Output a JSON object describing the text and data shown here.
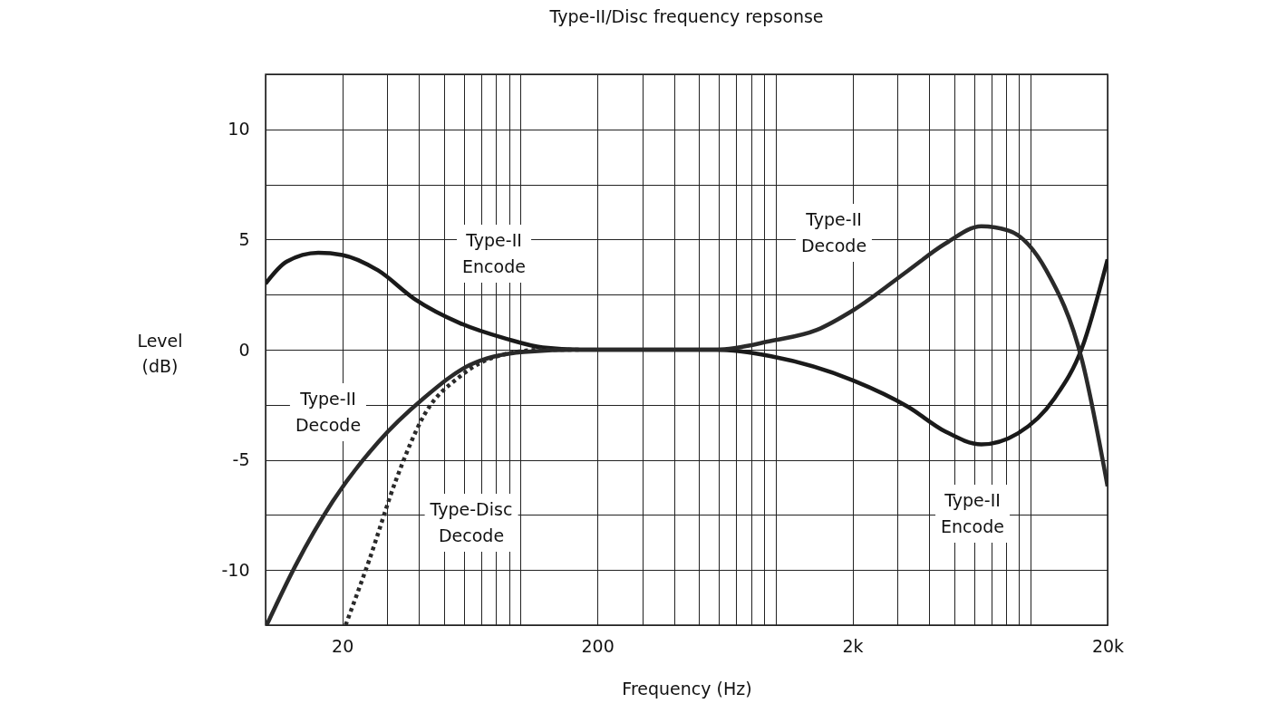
{
  "chart_data": {
    "type": "line",
    "title": "Type-II/Disc frequency repsonse",
    "xlabel": "Frequency (Hz)",
    "ylabel": "Level (dB)",
    "log": "x",
    "grid": true,
    "marker": "none",
    "xlim": [
      10,
      20000
    ],
    "ylim": [
      -12.5,
      12.5
    ],
    "xticks": [
      {
        "value": 10,
        "label": null
      },
      20,
      {
        "value": 30,
        "label": null
      },
      {
        "value": 40,
        "label": null
      },
      {
        "value": 50,
        "label": null
      },
      {
        "value": 60,
        "label": null
      },
      {
        "value": 70,
        "label": null
      },
      {
        "value": 80,
        "label": null
      },
      {
        "value": 90,
        "label": null
      },
      {
        "value": 100,
        "label": null
      },
      200,
      {
        "value": 300,
        "label": null
      },
      {
        "value": 400,
        "label": null
      },
      {
        "value": 500,
        "label": null
      },
      {
        "value": 600,
        "label": null
      },
      {
        "value": 700,
        "label": null
      },
      {
        "value": 800,
        "label": null
      },
      {
        "value": 900,
        "label": null
      },
      {
        "value": 1000,
        "label": null
      },
      {
        "value": 2000,
        "label": "2k"
      },
      {
        "value": 3000,
        "label": null
      },
      {
        "value": 4000,
        "label": null
      },
      {
        "value": 5000,
        "label": null
      },
      {
        "value": 6000,
        "label": null
      },
      {
        "value": 7000,
        "label": null
      },
      {
        "value": 8000,
        "label": null
      },
      {
        "value": 9000,
        "label": null
      },
      {
        "value": 10000,
        "label": null
      },
      {
        "value": 20000,
        "label": "20k"
      }
    ],
    "yticks": [
      {
        "value": -12.5,
        "label": null
      },
      -10,
      {
        "value": -7.5,
        "label": null
      },
      -5,
      {
        "value": -2.5,
        "label": null
      },
      0,
      {
        "value": 2.5,
        "label": null
      },
      5,
      {
        "value": 7.5,
        "label": null
      },
      10,
      {
        "value": 12.5,
        "label": null
      }
    ],
    "series": [
      {
        "color": "#1a1a1a",
        "line_style": "solid",
        "x": [
          10,
          12.1,
          16.1,
          20,
          27.6,
          38.4,
          58,
          87.7,
          122,
          172,
          585,
          960,
          2018,
          3311,
          4600,
          6400,
          8900,
          12400,
          15900,
          20000
        ],
        "values": [
          3.0,
          4.0,
          4.4,
          4.3,
          3.6,
          2.3,
          1.2,
          0.5,
          0.1,
          0,
          0,
          -0.3,
          -1.4,
          -2.6,
          -3.7,
          -4.3,
          -3.8,
          -2.2,
          0.1,
          4.1
        ]
      },
      {
        "color": "#2a2a2a",
        "line_style": "solid",
        "x": [
          10.1,
          13.1,
          18.3,
          27.6,
          41.7,
          63,
          103,
          172,
          585,
          960,
          1450,
          2018,
          3311,
          4600,
          6400,
          8200,
          11500,
          15900,
          20000
        ],
        "values": [
          -12.5,
          -9.8,
          -6.9,
          -4.2,
          -2.2,
          -0.7,
          -0.1,
          0,
          0,
          0.4,
          0.9,
          1.8,
          3.6,
          4.8,
          5.6,
          5.4,
          3.6,
          -0.5,
          -6.2
        ]
      },
      {
        "color": "#2a2a2a",
        "line_style": "dotted",
        "x": [
          20.6,
          25.4,
          32.5,
          41.7,
          58,
          80.7,
          122,
          172
        ],
        "values": [
          -12.5,
          -9.6,
          -5.9,
          -3.0,
          -1.2,
          -0.3,
          0,
          0
        ]
      }
    ],
    "annotations": [
      "Type-II\nEncode",
      "Type-II\nDecode",
      "Type-Disc\nDecode",
      "Type-II\nDecode",
      "Type-II\nEncode"
    ]
  }
}
